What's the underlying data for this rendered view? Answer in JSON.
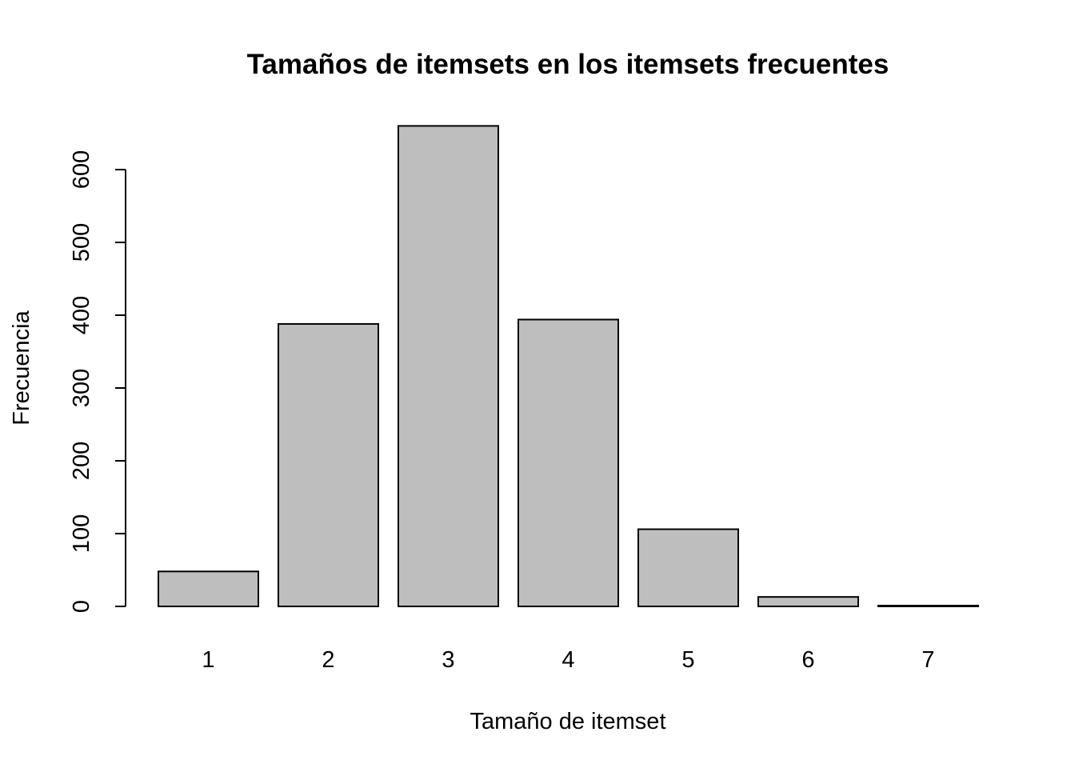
{
  "chart_data": {
    "type": "bar",
    "title": "Tamaños de itemsets en los itemsets frecuentes",
    "xlabel": "Tamaño de itemset",
    "ylabel": "Frecuencia",
    "categories": [
      "1",
      "2",
      "3",
      "4",
      "5",
      "6",
      "7"
    ],
    "values": [
      48,
      388,
      660,
      394,
      106,
      13,
      1
    ],
    "yticks": [
      0,
      100,
      200,
      300,
      400,
      500,
      600
    ],
    "ylim": [
      0,
      660
    ],
    "bar_color": "#bebebe",
    "grid": false,
    "legend": "none"
  }
}
